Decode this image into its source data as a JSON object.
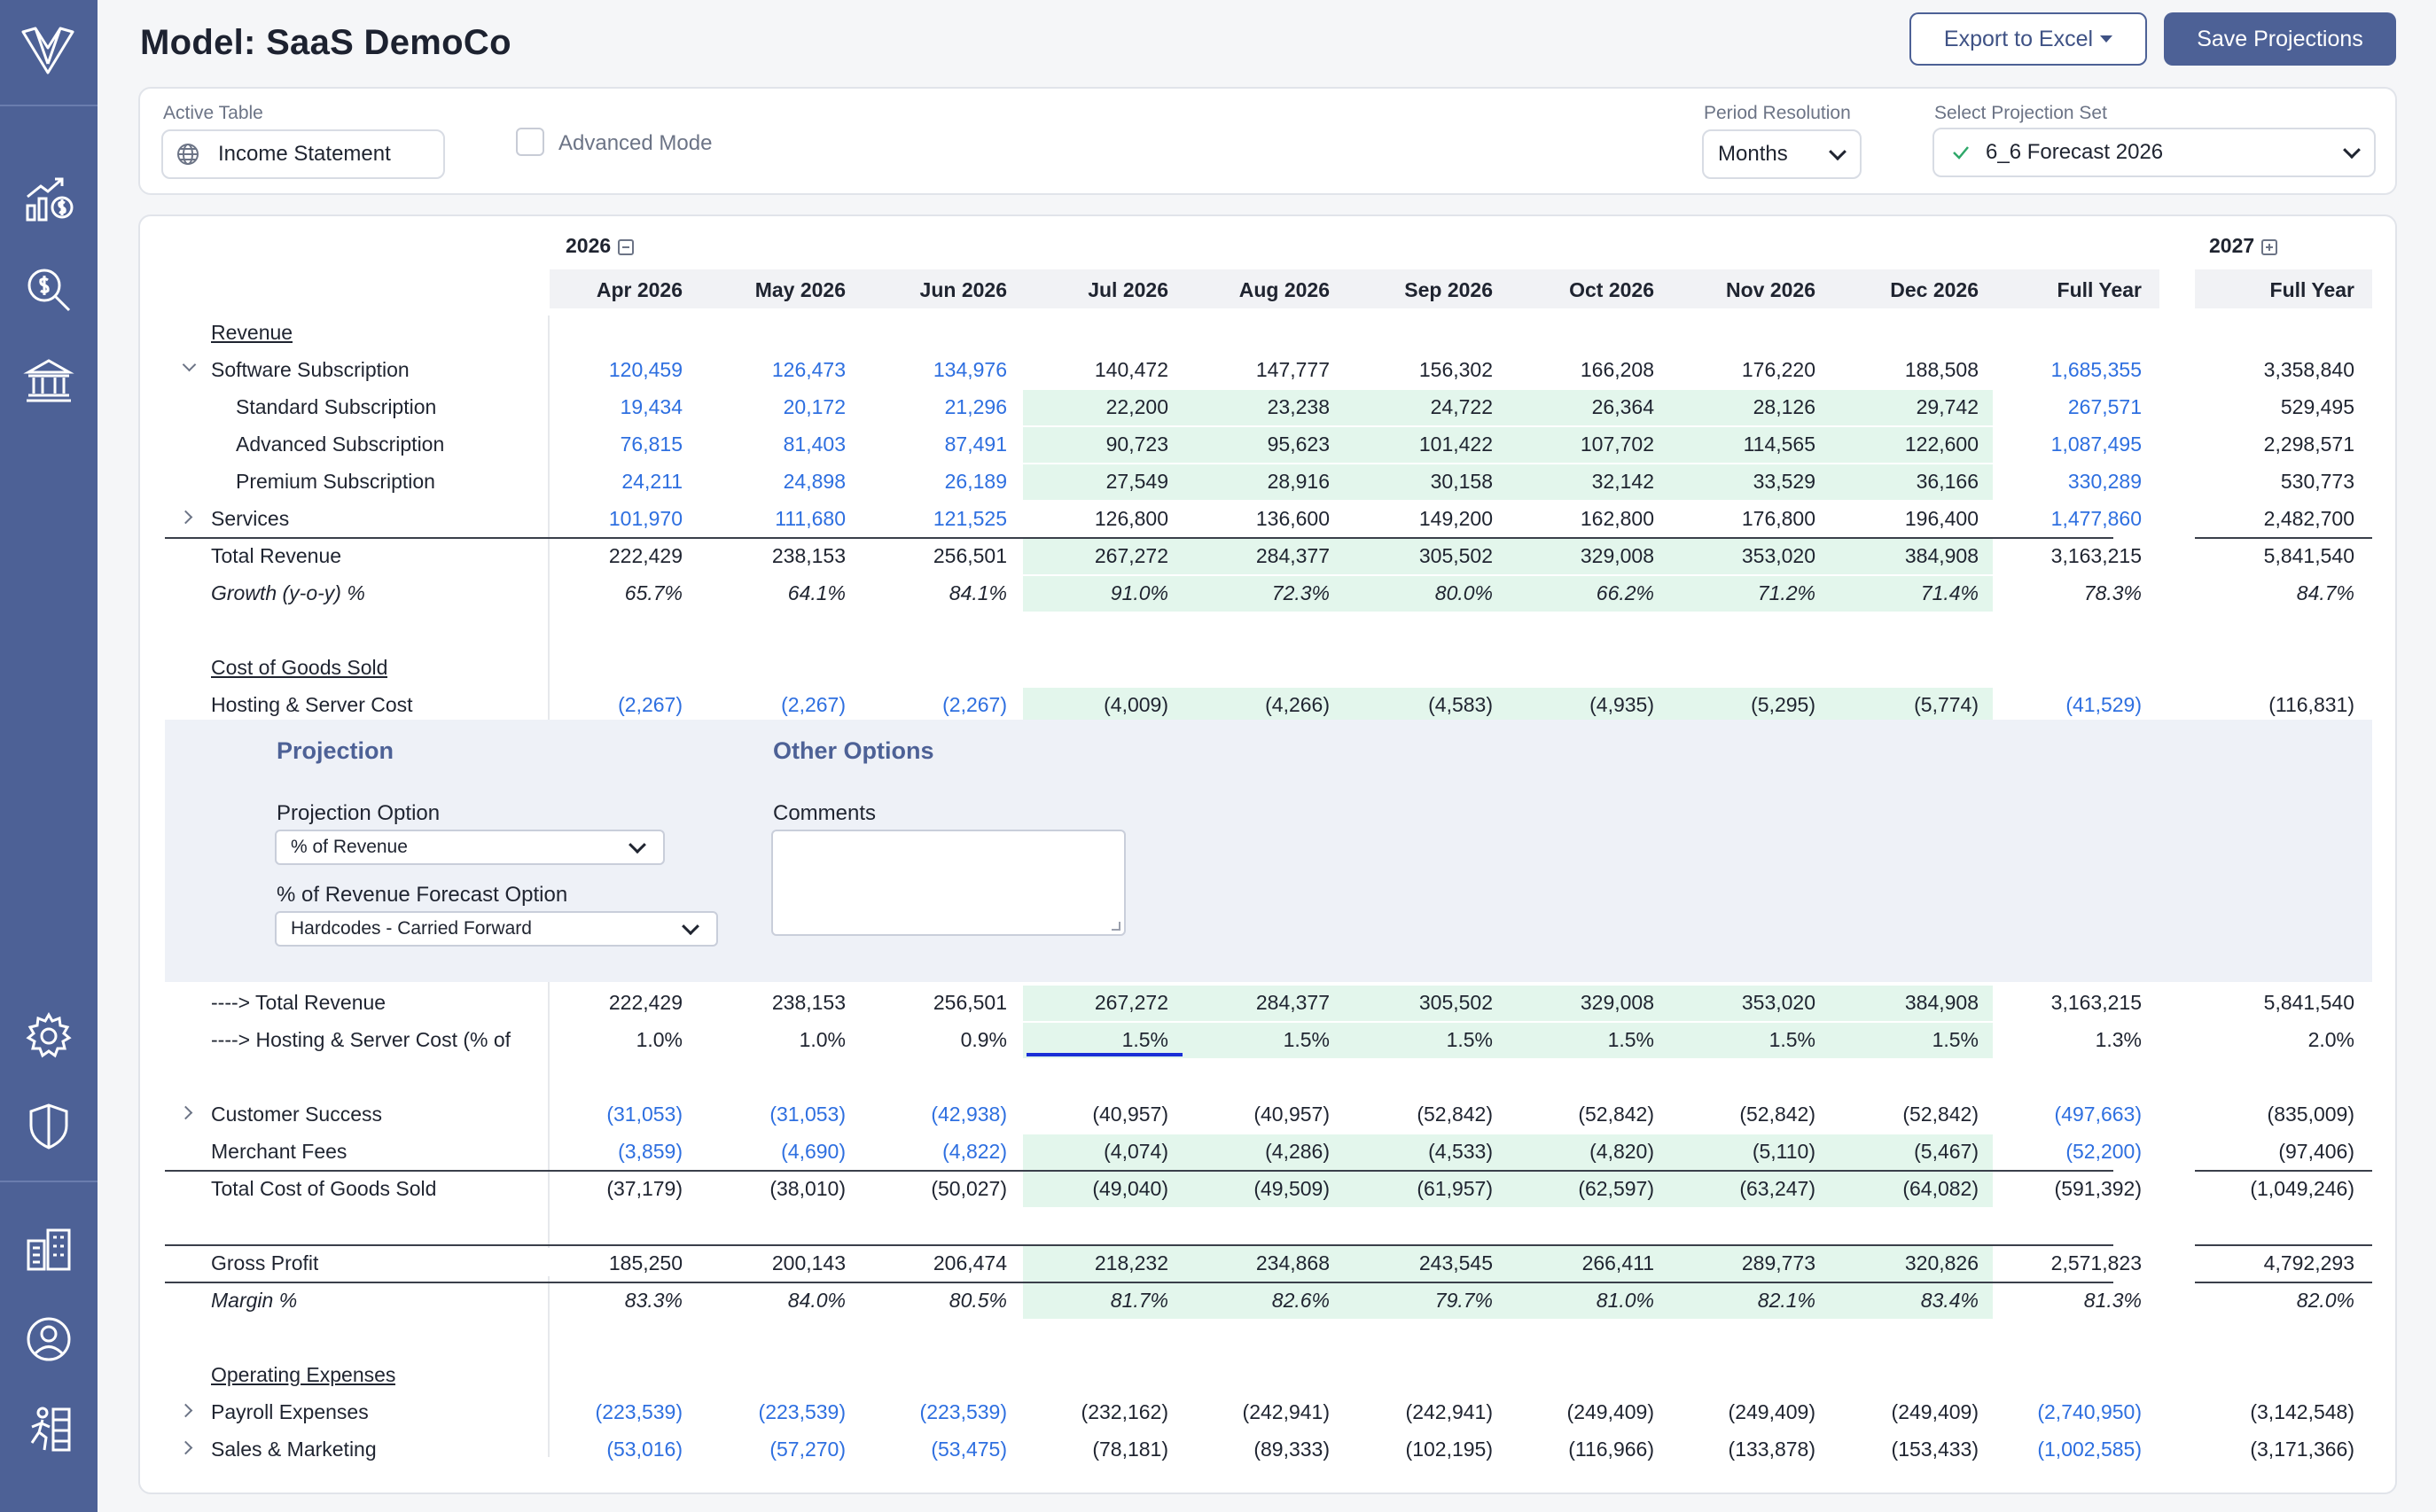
{
  "page": {
    "title": "Model: SaaS DemoCo"
  },
  "header": {
    "export_label": "Export to Excel",
    "save_label": "Save Projections"
  },
  "sidebar": {
    "items": [
      "logo-icon",
      "revenue-chart-icon",
      "search-dollar-icon",
      "bank-icon",
      "settings-icon",
      "shield-icon",
      "buildings-icon",
      "user-icon",
      "runner-icon"
    ]
  },
  "controls": {
    "active_table_label": "Active Table",
    "active_table_value": "Income Statement",
    "advanced_mode_label": "Advanced Mode",
    "period_label": "Period Resolution",
    "period_value": "Months",
    "projection_set_label": "Select Projection Set",
    "projection_set_value": "6_6 Forecast 2026"
  },
  "table": {
    "year_2026": "2026",
    "year_2027": "2027",
    "columns": [
      "Apr 2026",
      "May 2026",
      "Jun 2026",
      "Jul 2026",
      "Aug 2026",
      "Sep 2026",
      "Oct 2026",
      "Nov 2026",
      "Dec 2026",
      "Full Year",
      "Full Year"
    ],
    "rows": [
      {
        "label": "Revenue",
        "section": true
      },
      {
        "label": "Software Subscription",
        "expand": "open",
        "vals": [
          "120,459",
          "126,473",
          "134,976",
          "140,472",
          "147,777",
          "156,302",
          "166,208",
          "176,220",
          "188,508",
          "1,685,355",
          "3,358,840"
        ]
      },
      {
        "label": "Standard Subscription",
        "indent": 2,
        "vals": [
          "19,434",
          "20,172",
          "21,296",
          "22,200",
          "23,238",
          "24,722",
          "26,364",
          "28,126",
          "29,742",
          "267,571",
          "529,495"
        ],
        "green": true
      },
      {
        "label": "Advanced Subscription",
        "indent": 2,
        "vals": [
          "76,815",
          "81,403",
          "87,491",
          "90,723",
          "95,623",
          "101,422",
          "107,702",
          "114,565",
          "122,600",
          "1,087,495",
          "2,298,571"
        ],
        "green": true
      },
      {
        "label": "Premium Subscription",
        "indent": 2,
        "vals": [
          "24,211",
          "24,898",
          "26,189",
          "27,549",
          "28,916",
          "30,158",
          "32,142",
          "33,529",
          "36,166",
          "330,289",
          "530,773"
        ],
        "green": true
      },
      {
        "label": "Services",
        "expand": "closed",
        "vals": [
          "101,970",
          "111,680",
          "121,525",
          "126,800",
          "136,600",
          "149,200",
          "162,800",
          "176,800",
          "196,400",
          "1,477,860",
          "2,482,700"
        ]
      },
      {
        "label": "Total Revenue",
        "topline": true,
        "black": true,
        "vals": [
          "222,429",
          "238,153",
          "256,501",
          "267,272",
          "284,377",
          "305,502",
          "329,008",
          "353,020",
          "384,908",
          "3,163,215",
          "5,841,540"
        ],
        "green": true
      },
      {
        "label": "Growth (y-o-y) %",
        "italic": true,
        "black": true,
        "vals": [
          "65.7%",
          "64.1%",
          "84.1%",
          "91.0%",
          "72.3%",
          "80.0%",
          "66.2%",
          "71.2%",
          "71.4%",
          "78.3%",
          "84.7%"
        ],
        "green": true
      },
      {
        "label": "",
        "blank": true
      },
      {
        "label": "Cost of Goods Sold",
        "section": true
      },
      {
        "label": "Hosting & Server Cost",
        "vals": [
          "(2,267)",
          "(2,267)",
          "(2,267)",
          "(4,009)",
          "(4,266)",
          "(4,583)",
          "(4,935)",
          "(5,295)",
          "(5,774)",
          "(41,529)",
          "(116,831)"
        ],
        "green": true
      }
    ],
    "rows_after": [
      {
        "label": "----> Total Revenue",
        "black": true,
        "vals": [
          "222,429",
          "238,153",
          "256,501",
          "267,272",
          "284,377",
          "305,502",
          "329,008",
          "353,020",
          "384,908",
          "3,163,215",
          "5,841,540"
        ],
        "green": true
      },
      {
        "label": "----> Hosting & Server Cost (% of",
        "black": true,
        "vals": [
          "1.0%",
          "1.0%",
          "0.9%",
          "1.5%",
          "1.5%",
          "1.5%",
          "1.5%",
          "1.5%",
          "1.5%",
          "1.3%",
          "2.0%"
        ],
        "green": true
      },
      {
        "label": "",
        "blank": true
      },
      {
        "label": "Customer Success",
        "expand": "closed",
        "vals": [
          "(31,053)",
          "(31,053)",
          "(42,938)",
          "(40,957)",
          "(40,957)",
          "(52,842)",
          "(52,842)",
          "(52,842)",
          "(52,842)",
          "(497,663)",
          "(835,009)"
        ]
      },
      {
        "label": "Merchant Fees",
        "vals": [
          "(3,859)",
          "(4,690)",
          "(4,822)",
          "(4,074)",
          "(4,286)",
          "(4,533)",
          "(4,820)",
          "(5,110)",
          "(5,467)",
          "(52,200)",
          "(97,406)"
        ],
        "green": true
      },
      {
        "label": "Total Cost of Goods Sold",
        "topline": true,
        "black": true,
        "vals": [
          "(37,179)",
          "(38,010)",
          "(50,027)",
          "(49,040)",
          "(49,509)",
          "(61,957)",
          "(62,597)",
          "(63,247)",
          "(64,082)",
          "(591,392)",
          "(1,049,246)"
        ],
        "green": true
      },
      {
        "label": "",
        "blank": true
      },
      {
        "label": "Gross Profit",
        "topline": true,
        "black": true,
        "vals": [
          "185,250",
          "200,143",
          "206,474",
          "218,232",
          "234,868",
          "243,545",
          "266,411",
          "289,773",
          "320,826",
          "2,571,823",
          "4,792,293"
        ],
        "green": true
      },
      {
        "label": "Margin %",
        "topline": true,
        "italic": true,
        "black": true,
        "vals": [
          "83.3%",
          "84.0%",
          "80.5%",
          "81.7%",
          "82.6%",
          "79.7%",
          "81.0%",
          "82.1%",
          "83.4%",
          "81.3%",
          "82.0%"
        ],
        "green": true
      },
      {
        "label": "",
        "blank": true
      },
      {
        "label": "Operating Expenses",
        "section": true
      },
      {
        "label": "Payroll Expenses",
        "expand": "closed",
        "vals": [
          "(223,539)",
          "(223,539)",
          "(223,539)",
          "(232,162)",
          "(242,941)",
          "(242,941)",
          "(249,409)",
          "(249,409)",
          "(249,409)",
          "(2,740,950)",
          "(3,142,548)"
        ]
      },
      {
        "label": "Sales & Marketing",
        "expand": "closed",
        "vals": [
          "(53,016)",
          "(57,270)",
          "(53,475)",
          "(78,181)",
          "(89,333)",
          "(102,195)",
          "(116,966)",
          "(133,878)",
          "(153,433)",
          "(1,002,585)",
          "(3,171,366)"
        ]
      }
    ]
  },
  "projection_panel": {
    "projection_title": "Projection",
    "other_title": "Other Options",
    "projection_option_label": "Projection Option",
    "projection_option_value": "% of Revenue",
    "forecast_option_label": "% of Revenue Forecast Option",
    "forecast_option_value": "Hardcodes - Carried Forward",
    "comments_label": "Comments",
    "comments_value": ""
  },
  "colors": {
    "accent": "#4d6196",
    "link_blue": "#2e6fe0",
    "green_fill": "#e3f6ec",
    "focus_blue": "#1a2fd6"
  }
}
